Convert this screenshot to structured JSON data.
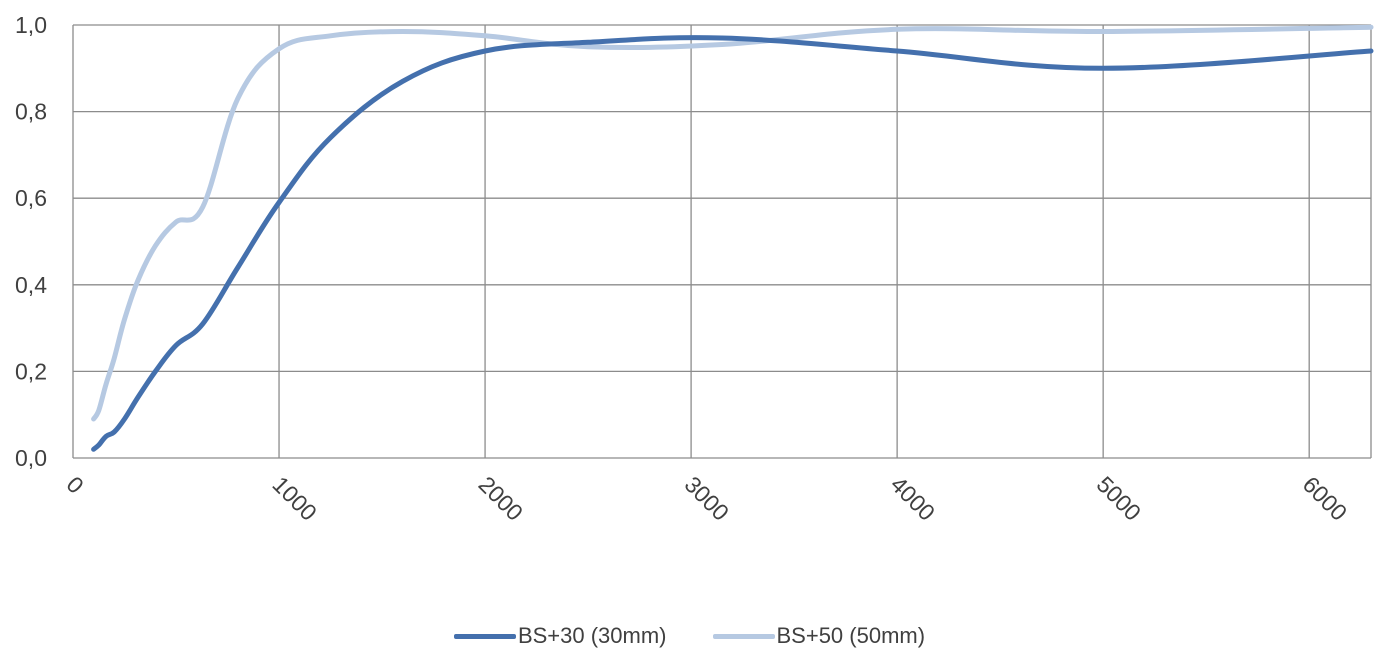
{
  "chart_data": {
    "type": "line",
    "title": "",
    "xlabel": "",
    "ylabel": "",
    "xlim": [
      0,
      6300
    ],
    "ylim": [
      0,
      1.0
    ],
    "x_ticks": [
      "0",
      "1000",
      "2000",
      "3000",
      "4000",
      "5000",
      "6000"
    ],
    "x_tick_values": [
      0,
      1000,
      2000,
      3000,
      4000,
      5000,
      6000
    ],
    "y_ticks": [
      "0,0",
      "0,2",
      "0,4",
      "0,6",
      "0,8",
      "1,0"
    ],
    "y_tick_values": [
      0,
      0.2,
      0.4,
      0.6,
      0.8,
      1.0
    ],
    "grid": true,
    "legend_position": "bottom",
    "series": [
      {
        "name": "BS+30 (30mm)",
        "color": "#4470ad",
        "points": [
          [
            100,
            0.02
          ],
          [
            125,
            0.03
          ],
          [
            160,
            0.05
          ],
          [
            200,
            0.06
          ],
          [
            250,
            0.09
          ],
          [
            315,
            0.14
          ],
          [
            400,
            0.2
          ],
          [
            500,
            0.26
          ],
          [
            630,
            0.31
          ],
          [
            800,
            0.44
          ],
          [
            1000,
            0.59
          ],
          [
            1250,
            0.74
          ],
          [
            1600,
            0.87
          ],
          [
            2000,
            0.94
          ],
          [
            2500,
            0.96
          ],
          [
            3150,
            0.97
          ],
          [
            4000,
            0.94
          ],
          [
            5000,
            0.9
          ],
          [
            6300,
            0.94
          ]
        ]
      },
      {
        "name": "BS+50 (50mm)",
        "color": "#b6c9e2",
        "points": [
          [
            100,
            0.09
          ],
          [
            125,
            0.11
          ],
          [
            160,
            0.17
          ],
          [
            200,
            0.23
          ],
          [
            250,
            0.32
          ],
          [
            315,
            0.41
          ],
          [
            400,
            0.49
          ],
          [
            500,
            0.545
          ],
          [
            630,
            0.58
          ],
          [
            800,
            0.83
          ],
          [
            1000,
            0.945
          ],
          [
            1250,
            0.975
          ],
          [
            1600,
            0.985
          ],
          [
            2000,
            0.975
          ],
          [
            2500,
            0.95
          ],
          [
            3150,
            0.955
          ],
          [
            4000,
            0.99
          ],
          [
            5000,
            0.985
          ],
          [
            6300,
            0.995
          ]
        ]
      }
    ]
  },
  "legend": {
    "item1": "BS+30 (30mm)",
    "item2": "BS+50 (50mm)"
  }
}
